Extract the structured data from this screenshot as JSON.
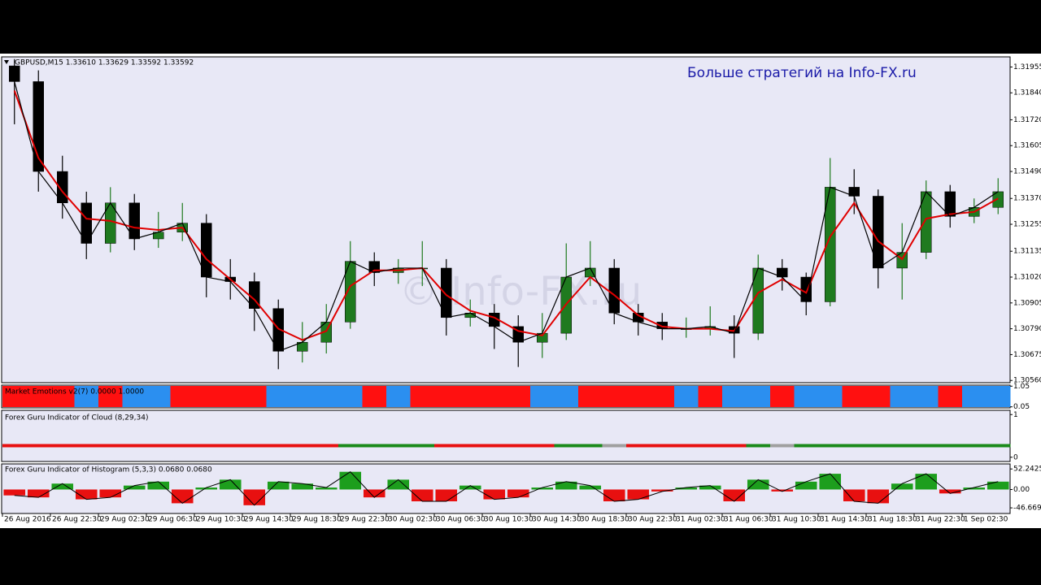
{
  "chart_data": [
    {
      "type": "candlestick",
      "title": "GBPUSD,M15  1.33610 1.33629 1.33592 1.33592",
      "annotation": "Больше стратегий на Info-FX.ru",
      "watermark": "© Info-FX.ru",
      "categories": [
        "26 Aug 2016",
        null,
        "26 Aug 22:30",
        null,
        "29 Aug 02:30",
        null,
        "29 Aug 06:30",
        null,
        "29 Aug 10:30",
        null,
        "29 Aug 14:30",
        null,
        "29 Aug 18:30",
        null,
        "29 Aug 22:30",
        null,
        "30 Aug 02:30",
        null,
        "30 Aug 06:30",
        null,
        "30 Aug 10:30",
        null,
        "30 Aug 14:30",
        null,
        "30 Aug 18:30",
        null,
        "30 Aug 22:30",
        null,
        "31 Aug 02:30",
        null,
        "31 Aug 06:30",
        null,
        "31 Aug 10:30",
        null,
        "31 Aug 14:30",
        null,
        "31 Aug 18:30",
        null,
        "31 Aug 22:30",
        null,
        "1 Sep 02:30",
        null
      ],
      "open": [
        1.3196,
        1.3189,
        1.3149,
        1.3135,
        1.3117,
        1.3135,
        1.3119,
        1.3122,
        1.3126,
        1.3102,
        1.31,
        1.3088,
        1.3069,
        1.3073,
        1.3082,
        1.3109,
        1.3104,
        1.3106,
        1.3106,
        1.3084,
        1.3086,
        1.308,
        1.3073,
        1.3077,
        1.3102,
        1.3106,
        1.3086,
        1.3082,
        1.3079,
        1.3079,
        1.308,
        1.3077,
        1.3106,
        1.3102,
        1.3091,
        1.3142,
        1.3138,
        1.3106,
        1.3113,
        1.314,
        1.3129,
        1.3133
      ],
      "high": [
        1.3199,
        1.3194,
        1.3156,
        1.314,
        1.3142,
        1.3139,
        1.3131,
        1.3135,
        1.313,
        1.311,
        1.3104,
        1.3092,
        1.3082,
        1.309,
        1.3118,
        1.3113,
        1.311,
        1.3118,
        1.311,
        1.3092,
        1.309,
        1.3085,
        1.3086,
        1.3117,
        1.3118,
        1.311,
        1.309,
        1.3086,
        1.3084,
        1.3089,
        1.3085,
        1.3112,
        1.311,
        1.3104,
        1.3155,
        1.315,
        1.3141,
        1.3126,
        1.3145,
        1.3143,
        1.3137,
        1.3146
      ],
      "low": [
        1.317,
        1.314,
        1.3128,
        1.311,
        1.3113,
        1.3114,
        1.3115,
        1.3118,
        1.3093,
        1.3092,
        1.3078,
        1.3061,
        1.3064,
        1.3068,
        1.3079,
        1.3098,
        1.3099,
        1.3098,
        1.3076,
        1.308,
        1.307,
        1.3062,
        1.3066,
        1.3074,
        1.3098,
        1.3081,
        1.3076,
        1.3074,
        1.3075,
        1.3076,
        1.3066,
        1.3074,
        1.3096,
        1.3085,
        1.3089,
        1.313,
        1.3097,
        1.3092,
        1.311,
        1.3124,
        1.3126,
        1.313
      ],
      "close": [
        1.3189,
        1.3149,
        1.3135,
        1.3117,
        1.3135,
        1.3119,
        1.3122,
        1.3126,
        1.3102,
        1.31,
        1.3088,
        1.3069,
        1.3073,
        1.3082,
        1.3109,
        1.3104,
        1.3106,
        1.3106,
        1.3084,
        1.3086,
        1.308,
        1.3073,
        1.3077,
        1.3102,
        1.3106,
        1.3086,
        1.3082,
        1.3079,
        1.3079,
        1.308,
        1.3077,
        1.3106,
        1.3102,
        1.3091,
        1.3142,
        1.3138,
        1.3106,
        1.3113,
        1.314,
        1.3129,
        1.3133,
        1.314
      ],
      "ma": [
        1.3185,
        1.3155,
        1.314,
        1.3128,
        1.3127,
        1.3124,
        1.3123,
        1.3124,
        1.311,
        1.3101,
        1.3092,
        1.3079,
        1.3074,
        1.3078,
        1.3098,
        1.3105,
        1.3105,
        1.3106,
        1.3094,
        1.3087,
        1.3084,
        1.3078,
        1.3076,
        1.309,
        1.3102,
        1.3094,
        1.3085,
        1.308,
        1.3079,
        1.3079,
        1.3078,
        1.3095,
        1.3101,
        1.3095,
        1.312,
        1.3135,
        1.3118,
        1.311,
        1.3128,
        1.313,
        1.3131,
        1.3137
      ],
      "up_color": "#1f7a1f",
      "down_color": "#000000",
      "ma_color": "#e00000",
      "close_color": "#000000",
      "ylim": [
        1.3055,
        1.32
      ],
      "yticks": [
        1.31955,
        {
          "value": 1.3184,
          "label": "1.31840"
        },
        {
          "value": 1.3172,
          "label": "1.31720"
        },
        1.31605,
        {
          "value": 1.3149,
          "label": "1.31490"
        },
        {
          "value": 1.3137,
          "label": "1.31370"
        },
        1.31255,
        1.31135,
        {
          "value": 1.3102,
          "label": "1.31020"
        },
        1.30905,
        {
          "value": 1.3079,
          "label": "1.30790"
        },
        1.30675,
        {
          "value": 1.3056,
          "label": "1.30560"
        }
      ]
    },
    {
      "type": "strip",
      "title": "Market Emotions v2(7) 0.0000 1.0000",
      "values": [
        0,
        0,
        0,
        1,
        0,
        1,
        1,
        0,
        0,
        0,
        0,
        1,
        1,
        1,
        1,
        0,
        1,
        0,
        0,
        0,
        0,
        0,
        1,
        1,
        0,
        0,
        0,
        0,
        1,
        0,
        1,
        1,
        0,
        1,
        1,
        0,
        0,
        1,
        1,
        0,
        1,
        1
      ],
      "colors": [
        "#ff1010",
        "#2b8ff0"
      ],
      "ylim": [
        0,
        1.1
      ],
      "yticks": [
        1.05,
        0.05
      ]
    },
    {
      "type": "colorline",
      "title": "Forex Guru Indicator of Cloud (8,29,34)",
      "values": [
        0,
        0,
        0,
        0,
        0,
        0,
        0,
        0,
        0,
        0,
        0,
        0,
        0,
        0,
        1,
        1,
        1,
        1,
        0,
        0,
        0,
        0,
        0,
        1,
        1,
        2,
        0,
        0,
        0,
        0,
        0,
        1,
        2,
        1,
        1,
        1,
        1,
        1,
        1,
        1,
        1,
        1
      ],
      "colors": [
        "#e81010",
        "#1a8a1a",
        "#a0a0a0"
      ],
      "ylim": [
        -0.1,
        1.1
      ],
      "yticks": [
        1,
        0
      ]
    },
    {
      "type": "bar",
      "title": "Forex Guru Indicator of Histogram (5,3,3) 0.0680 0.0680",
      "values": [
        -15,
        -20,
        15,
        -25,
        -20,
        10,
        20,
        -35,
        5,
        25,
        -40,
        20,
        15,
        5,
        45,
        -20,
        25,
        -30,
        -30,
        10,
        -25,
        -20,
        5,
        20,
        10,
        -30,
        -25,
        -5,
        5,
        10,
        -30,
        25,
        -5,
        20,
        40,
        -30,
        -35,
        15,
        40,
        -10,
        5,
        20
      ],
      "pos_color": "#1d9e1d",
      "neg_color": "#e81010",
      "ylim": [
        -61,
        65
      ],
      "yticks": [
        52.2425,
        {
          "value": 0,
          "label": "0.00"
        },
        -46.6699
      ]
    }
  ]
}
